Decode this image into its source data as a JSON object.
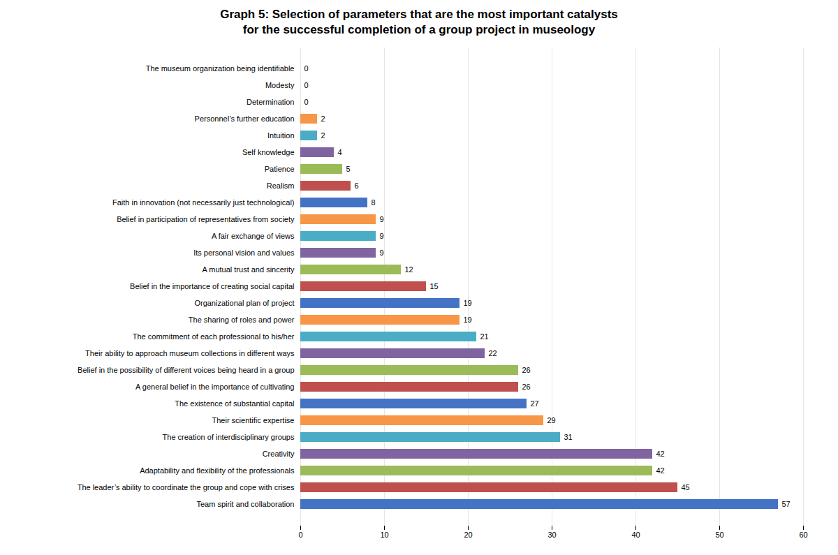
{
  "chart_data": {
    "type": "bar",
    "orientation": "horizontal",
    "title": "Graph 5: Selection of parameters that are the most important catalysts\nfor the successful completion of a group project in museology",
    "categories": [
      "The museum organization being identifiable",
      "Modesty",
      "Determination",
      "Personnel’s further education",
      "Intuition",
      "Self knowledge",
      "Patience",
      "Realism",
      "Faith in innovation (not necessarily just technological)",
      "Belief in participation of representatives from society",
      "A fair exchange of views",
      "Its personal vision and values",
      "A mutual trust and sincerity",
      "Belief in the importance of creating social capital",
      "Organizational plan of project",
      "The sharing of roles and power",
      "The commitment of each professional to his/her",
      "Their ability to approach museum collections in different ways",
      "Belief in the possibility of different voices being heard in a group",
      "A general belief in the importance of cultivating",
      "The existence of substantial capital",
      "Their scientific expertise",
      "The creation of interdisciplinary groups",
      "Creativity",
      "Adaptability and flexibility of the professionals",
      "The leader’s ability to coordinate the group and cope with crises",
      "Team spirit and collaboration"
    ],
    "values": [
      0,
      0,
      0,
      2,
      2,
      4,
      5,
      6,
      8,
      9,
      9,
      9,
      12,
      15,
      19,
      19,
      21,
      22,
      26,
      26,
      27,
      29,
      31,
      42,
      42,
      45,
      57
    ],
    "colors": [
      "#9bbb59",
      "#c0504d",
      "#4472c4",
      "#f79646",
      "#4bacc6",
      "#8064a2",
      "#9bbb59",
      "#c0504d",
      "#4472c4",
      "#f79646",
      "#4bacc6",
      "#8064a2",
      "#9bbb59",
      "#c0504d",
      "#4472c4",
      "#f79646",
      "#4bacc6",
      "#8064a2",
      "#9bbb59",
      "#c0504d",
      "#4472c4",
      "#f79646",
      "#4bacc6",
      "#8064a2",
      "#9bbb59",
      "#c0504d",
      "#4472c4"
    ],
    "xlim": [
      0,
      60
    ],
    "xticks": [
      0,
      10,
      20,
      30,
      40,
      50,
      60
    ],
    "grid": true,
    "data_labels": true
  }
}
